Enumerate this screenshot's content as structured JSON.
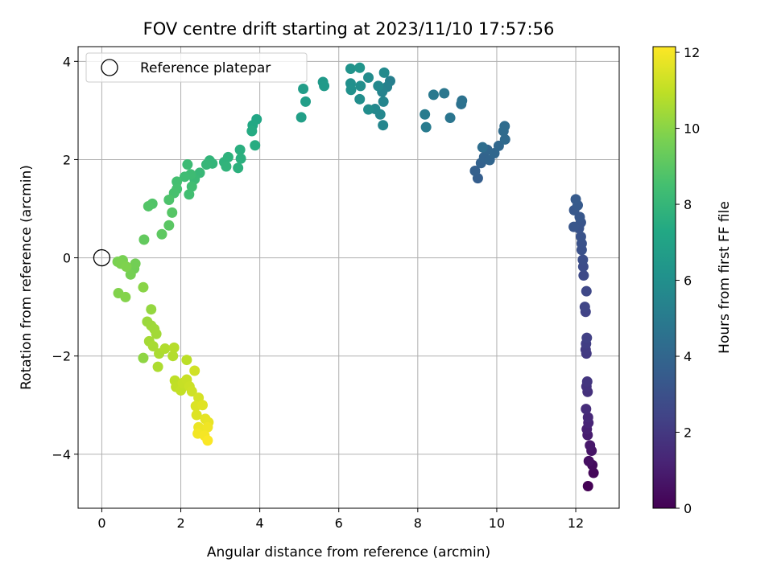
{
  "chart_data": {
    "type": "scatter",
    "title": "FOV centre drift starting at 2023/11/10 17:57:56",
    "xlabel": "Angular distance from reference (arcmin)",
    "ylabel": "Rotation from reference (arcmin)",
    "xlim": [
      -0.6,
      13.1
    ],
    "ylim": [
      -5.1,
      4.3
    ],
    "xticks": [
      0,
      2,
      4,
      6,
      8,
      10,
      12
    ],
    "yticks": [
      -4,
      -2,
      0,
      2,
      4
    ],
    "grid": true,
    "colormap": "viridis",
    "colorbar": {
      "label": "Hours from first FF file",
      "range": [
        0,
        12.15
      ],
      "ticks": [
        0,
        2,
        4,
        6,
        8,
        10,
        12
      ]
    },
    "legend": {
      "position": "top-left",
      "entries": [
        "Reference platepar"
      ]
    },
    "reference_point": {
      "x": 0,
      "y": 0,
      "label": "Reference platepar"
    },
    "points": [
      {
        "x": 12.31,
        "y": -4.65,
        "h": 0.05
      },
      {
        "x": 12.45,
        "y": -4.38,
        "h": 0.2
      },
      {
        "x": 12.42,
        "y": -4.22,
        "h": 0.35
      },
      {
        "x": 12.33,
        "y": -4.14,
        "h": 0.5
      },
      {
        "x": 12.4,
        "y": -3.93,
        "h": 0.65
      },
      {
        "x": 12.36,
        "y": -3.82,
        "h": 0.8
      },
      {
        "x": 12.3,
        "y": -3.61,
        "h": 0.95
      },
      {
        "x": 12.28,
        "y": -3.49,
        "h": 1.1
      },
      {
        "x": 12.32,
        "y": -3.36,
        "h": 1.25
      },
      {
        "x": 12.31,
        "y": -3.25,
        "h": 1.4
      },
      {
        "x": 12.26,
        "y": -3.08,
        "h": 1.55
      },
      {
        "x": 12.3,
        "y": -2.73,
        "h": 1.7
      },
      {
        "x": 12.27,
        "y": -2.62,
        "h": 1.8
      },
      {
        "x": 12.29,
        "y": -2.52,
        "h": 1.9
      },
      {
        "x": 12.27,
        "y": -1.95,
        "h": 2.0
      },
      {
        "x": 12.25,
        "y": -1.87,
        "h": 2.1
      },
      {
        "x": 12.26,
        "y": -1.75,
        "h": 2.2
      },
      {
        "x": 12.28,
        "y": -1.63,
        "h": 2.3
      },
      {
        "x": 12.25,
        "y": -1.1,
        "h": 2.4
      },
      {
        "x": 12.23,
        "y": -1.0,
        "h": 2.5
      },
      {
        "x": 12.27,
        "y": -0.68,
        "h": 2.6
      },
      {
        "x": 12.2,
        "y": -0.36,
        "h": 2.7
      },
      {
        "x": 12.19,
        "y": -0.18,
        "h": 2.8
      },
      {
        "x": 12.18,
        "y": -0.04,
        "h": 2.9
      },
      {
        "x": 12.15,
        "y": 0.16,
        "h": 3.0
      },
      {
        "x": 12.15,
        "y": 0.29,
        "h": 3.05
      },
      {
        "x": 12.13,
        "y": 0.43,
        "h": 3.1
      },
      {
        "x": 12.08,
        "y": 0.6,
        "h": 3.15
      },
      {
        "x": 12.13,
        "y": 0.72,
        "h": 3.2
      },
      {
        "x": 11.95,
        "y": 0.63,
        "h": 3.25
      },
      {
        "x": 12.1,
        "y": 0.83,
        "h": 3.3
      },
      {
        "x": 11.96,
        "y": 0.97,
        "h": 3.35
      },
      {
        "x": 12.05,
        "y": 1.07,
        "h": 3.4
      },
      {
        "x": 12.0,
        "y": 1.19,
        "h": 3.45
      },
      {
        "x": 9.52,
        "y": 1.62,
        "h": 3.6
      },
      {
        "x": 9.45,
        "y": 1.77,
        "h": 3.7
      },
      {
        "x": 9.6,
        "y": 1.93,
        "h": 3.8
      },
      {
        "x": 9.68,
        "y": 2.05,
        "h": 3.9
      },
      {
        "x": 9.82,
        "y": 1.99,
        "h": 3.95
      },
      {
        "x": 9.76,
        "y": 2.2,
        "h": 4.0
      },
      {
        "x": 9.94,
        "y": 2.13,
        "h": 4.05
      },
      {
        "x": 10.05,
        "y": 2.28,
        "h": 4.1
      },
      {
        "x": 10.21,
        "y": 2.41,
        "h": 4.2
      },
      {
        "x": 10.17,
        "y": 2.58,
        "h": 4.25
      },
      {
        "x": 10.2,
        "y": 2.68,
        "h": 4.3
      },
      {
        "x": 9.64,
        "y": 2.25,
        "h": 4.35
      },
      {
        "x": 9.1,
        "y": 3.13,
        "h": 4.5
      },
      {
        "x": 9.12,
        "y": 3.2,
        "h": 4.55
      },
      {
        "x": 8.82,
        "y": 2.85,
        "h": 4.7
      },
      {
        "x": 8.67,
        "y": 3.35,
        "h": 4.8
      },
      {
        "x": 8.4,
        "y": 3.32,
        "h": 4.9
      },
      {
        "x": 8.21,
        "y": 2.66,
        "h": 5.0
      },
      {
        "x": 8.18,
        "y": 2.92,
        "h": 5.05
      },
      {
        "x": 7.3,
        "y": 3.6,
        "h": 5.2
      },
      {
        "x": 7.22,
        "y": 3.48,
        "h": 5.3
      },
      {
        "x": 7.1,
        "y": 3.38,
        "h": 5.4
      },
      {
        "x": 7.13,
        "y": 3.18,
        "h": 5.5
      },
      {
        "x": 7.12,
        "y": 2.7,
        "h": 5.55
      },
      {
        "x": 7.05,
        "y": 2.92,
        "h": 5.6
      },
      {
        "x": 6.92,
        "y": 3.03,
        "h": 5.65
      },
      {
        "x": 7.0,
        "y": 3.5,
        "h": 5.7
      },
      {
        "x": 7.15,
        "y": 3.77,
        "h": 5.75
      },
      {
        "x": 6.75,
        "y": 3.67,
        "h": 5.85
      },
      {
        "x": 6.75,
        "y": 3.02,
        "h": 5.9
      },
      {
        "x": 6.53,
        "y": 3.23,
        "h": 5.95
      },
      {
        "x": 6.55,
        "y": 3.5,
        "h": 6.0
      },
      {
        "x": 6.3,
        "y": 3.55,
        "h": 6.05
      },
      {
        "x": 6.31,
        "y": 3.42,
        "h": 6.1
      },
      {
        "x": 6.3,
        "y": 3.85,
        "h": 6.2
      },
      {
        "x": 6.53,
        "y": 3.87,
        "h": 6.3
      },
      {
        "x": 5.6,
        "y": 3.58,
        "h": 6.5
      },
      {
        "x": 5.63,
        "y": 3.5,
        "h": 6.55
      },
      {
        "x": 5.1,
        "y": 3.44,
        "h": 6.7
      },
      {
        "x": 5.16,
        "y": 3.18,
        "h": 6.75
      },
      {
        "x": 5.05,
        "y": 2.86,
        "h": 6.8
      },
      {
        "x": 3.92,
        "y": 2.82,
        "h": 7.2
      },
      {
        "x": 3.82,
        "y": 2.7,
        "h": 7.3
      },
      {
        "x": 3.8,
        "y": 2.58,
        "h": 7.4
      },
      {
        "x": 3.88,
        "y": 2.29,
        "h": 7.5
      },
      {
        "x": 3.5,
        "y": 2.2,
        "h": 7.6
      },
      {
        "x": 3.52,
        "y": 2.02,
        "h": 7.65
      },
      {
        "x": 3.45,
        "y": 1.83,
        "h": 7.7
      },
      {
        "x": 3.2,
        "y": 2.05,
        "h": 7.75
      },
      {
        "x": 3.1,
        "y": 1.95,
        "h": 7.8
      },
      {
        "x": 3.15,
        "y": 1.86,
        "h": 7.85
      },
      {
        "x": 2.73,
        "y": 1.98,
        "h": 7.9
      },
      {
        "x": 2.8,
        "y": 1.92,
        "h": 7.95
      },
      {
        "x": 2.65,
        "y": 1.9,
        "h": 8.0
      },
      {
        "x": 2.48,
        "y": 1.73,
        "h": 8.1
      },
      {
        "x": 2.35,
        "y": 1.6,
        "h": 8.2
      },
      {
        "x": 2.17,
        "y": 1.9,
        "h": 8.25
      },
      {
        "x": 2.25,
        "y": 1.7,
        "h": 8.3
      },
      {
        "x": 2.1,
        "y": 1.65,
        "h": 8.35
      },
      {
        "x": 2.28,
        "y": 1.45,
        "h": 8.4
      },
      {
        "x": 2.21,
        "y": 1.29,
        "h": 8.45
      },
      {
        "x": 1.9,
        "y": 1.55,
        "h": 8.5
      },
      {
        "x": 1.9,
        "y": 1.4,
        "h": 8.55
      },
      {
        "x": 1.83,
        "y": 1.32,
        "h": 8.6
      },
      {
        "x": 1.7,
        "y": 1.18,
        "h": 8.7
      },
      {
        "x": 1.28,
        "y": 1.1,
        "h": 8.8
      },
      {
        "x": 1.18,
        "y": 1.05,
        "h": 8.85
      },
      {
        "x": 1.78,
        "y": 0.92,
        "h": 8.9
      },
      {
        "x": 1.7,
        "y": 0.66,
        "h": 9.0
      },
      {
        "x": 1.52,
        "y": 0.48,
        "h": 9.1
      },
      {
        "x": 1.07,
        "y": 0.37,
        "h": 9.2
      },
      {
        "x": 0.82,
        "y": -0.22,
        "h": 9.5
      },
      {
        "x": 0.85,
        "y": -0.12,
        "h": 9.55
      },
      {
        "x": 0.73,
        "y": -0.34,
        "h": 9.6
      },
      {
        "x": 0.53,
        "y": -0.05,
        "h": 9.65
      },
      {
        "x": 0.4,
        "y": -0.08,
        "h": 9.7
      },
      {
        "x": 0.48,
        "y": -0.12,
        "h": 9.75
      },
      {
        "x": 0.62,
        "y": -0.18,
        "h": 9.8
      },
      {
        "x": 0.42,
        "y": -0.72,
        "h": 9.85
      },
      {
        "x": 0.6,
        "y": -0.8,
        "h": 9.9
      },
      {
        "x": 1.05,
        "y": -0.6,
        "h": 10.0
      },
      {
        "x": 1.05,
        "y": -2.04,
        "h": 10.1
      },
      {
        "x": 1.25,
        "y": -1.05,
        "h": 10.2
      },
      {
        "x": 1.15,
        "y": -1.3,
        "h": 10.3
      },
      {
        "x": 1.25,
        "y": -1.38,
        "h": 10.35
      },
      {
        "x": 1.33,
        "y": -1.45,
        "h": 10.4
      },
      {
        "x": 1.38,
        "y": -1.55,
        "h": 10.45
      },
      {
        "x": 1.2,
        "y": -1.7,
        "h": 10.5
      },
      {
        "x": 1.3,
        "y": -1.8,
        "h": 10.55
      },
      {
        "x": 1.45,
        "y": -1.95,
        "h": 10.6
      },
      {
        "x": 1.42,
        "y": -2.22,
        "h": 10.65
      },
      {
        "x": 1.6,
        "y": -1.85,
        "h": 10.7
      },
      {
        "x": 1.8,
        "y": -2.0,
        "h": 10.75
      },
      {
        "x": 1.83,
        "y": -1.83,
        "h": 10.8
      },
      {
        "x": 2.15,
        "y": -2.08,
        "h": 10.9
      },
      {
        "x": 1.85,
        "y": -2.5,
        "h": 10.95
      },
      {
        "x": 1.88,
        "y": -2.63,
        "h": 11.0
      },
      {
        "x": 2.0,
        "y": -2.7,
        "h": 11.05
      },
      {
        "x": 2.05,
        "y": -2.55,
        "h": 11.1
      },
      {
        "x": 2.15,
        "y": -2.48,
        "h": 11.15
      },
      {
        "x": 2.22,
        "y": -2.62,
        "h": 11.2
      },
      {
        "x": 2.28,
        "y": -2.72,
        "h": 11.25
      },
      {
        "x": 2.35,
        "y": -2.3,
        "h": 11.3
      },
      {
        "x": 2.45,
        "y": -2.85,
        "h": 11.4
      },
      {
        "x": 2.38,
        "y": -3.02,
        "h": 11.5
      },
      {
        "x": 2.4,
        "y": -3.2,
        "h": 11.55
      },
      {
        "x": 2.55,
        "y": -3.0,
        "h": 11.6
      },
      {
        "x": 2.62,
        "y": -3.28,
        "h": 11.7
      },
      {
        "x": 2.7,
        "y": -3.35,
        "h": 11.75
      },
      {
        "x": 2.45,
        "y": -3.45,
        "h": 11.8
      },
      {
        "x": 2.52,
        "y": -3.5,
        "h": 11.85
      },
      {
        "x": 2.68,
        "y": -3.45,
        "h": 11.9
      },
      {
        "x": 2.43,
        "y": -3.58,
        "h": 11.95
      },
      {
        "x": 2.6,
        "y": -3.62,
        "h": 12.0
      },
      {
        "x": 2.68,
        "y": -3.72,
        "h": 12.1
      }
    ]
  }
}
